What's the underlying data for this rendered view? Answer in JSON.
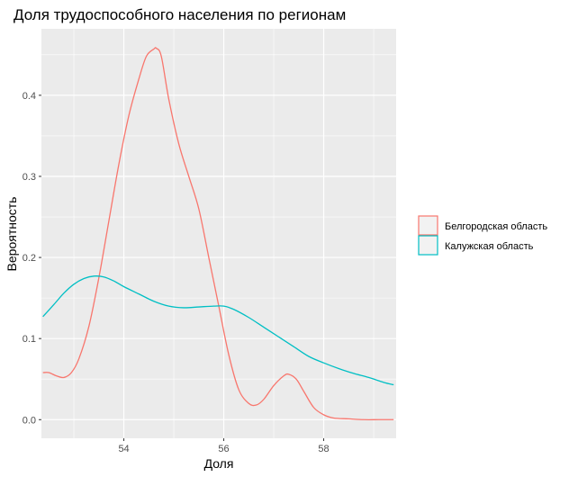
{
  "chart_data": {
    "type": "line",
    "title": "Доля трудоспособного населения по регионам",
    "xlabel": "Доля",
    "ylabel": "Вероятность",
    "xlim": [
      52.35,
      59.45
    ],
    "ylim": [
      -0.023,
      0.482
    ],
    "x_ticks": [
      54,
      56,
      58
    ],
    "x_tick_labels": [
      "54",
      "56",
      "58"
    ],
    "y_ticks": [
      0.0,
      0.1,
      0.2,
      0.3,
      0.4
    ],
    "y_tick_labels": [
      "0.0",
      "0.1",
      "0.2",
      "0.3",
      "0.4"
    ],
    "grid": true,
    "legend_position": "right",
    "series": [
      {
        "name": "Белгородская область",
        "color": "#F8766D",
        "x": [
          52.38,
          52.5,
          52.65,
          52.8,
          52.95,
          53.1,
          53.3,
          53.5,
          53.7,
          53.9,
          54.1,
          54.3,
          54.45,
          54.6,
          54.65,
          54.75,
          54.9,
          55.1,
          55.3,
          55.5,
          55.7,
          55.9,
          56.1,
          56.3,
          56.5,
          56.65,
          56.8,
          57.0,
          57.2,
          57.3,
          57.45,
          57.6,
          57.8,
          58.0,
          58.2,
          58.5,
          58.8,
          59.1,
          59.4
        ],
        "y": [
          0.058,
          0.058,
          0.054,
          0.052,
          0.058,
          0.075,
          0.115,
          0.175,
          0.245,
          0.315,
          0.375,
          0.42,
          0.448,
          0.457,
          0.458,
          0.448,
          0.395,
          0.34,
          0.3,
          0.26,
          0.2,
          0.14,
          0.08,
          0.037,
          0.02,
          0.018,
          0.025,
          0.042,
          0.054,
          0.056,
          0.05,
          0.035,
          0.015,
          0.006,
          0.002,
          0.001,
          0.0,
          0.0,
          0.0
        ]
      },
      {
        "name": "Калужская область",
        "color": "#00BFC4",
        "x": [
          52.38,
          52.6,
          52.8,
          53.0,
          53.2,
          53.4,
          53.6,
          53.8,
          54.0,
          54.3,
          54.6,
          54.9,
          55.2,
          55.5,
          55.8,
          56.0,
          56.2,
          56.5,
          56.8,
          57.1,
          57.4,
          57.7,
          58.0,
          58.3,
          58.6,
          58.9,
          59.2,
          59.4
        ],
        "y": [
          0.127,
          0.142,
          0.156,
          0.167,
          0.174,
          0.177,
          0.176,
          0.171,
          0.164,
          0.155,
          0.146,
          0.14,
          0.138,
          0.139,
          0.14,
          0.14,
          0.136,
          0.126,
          0.114,
          0.102,
          0.09,
          0.078,
          0.07,
          0.063,
          0.057,
          0.052,
          0.046,
          0.043
        ]
      }
    ]
  }
}
